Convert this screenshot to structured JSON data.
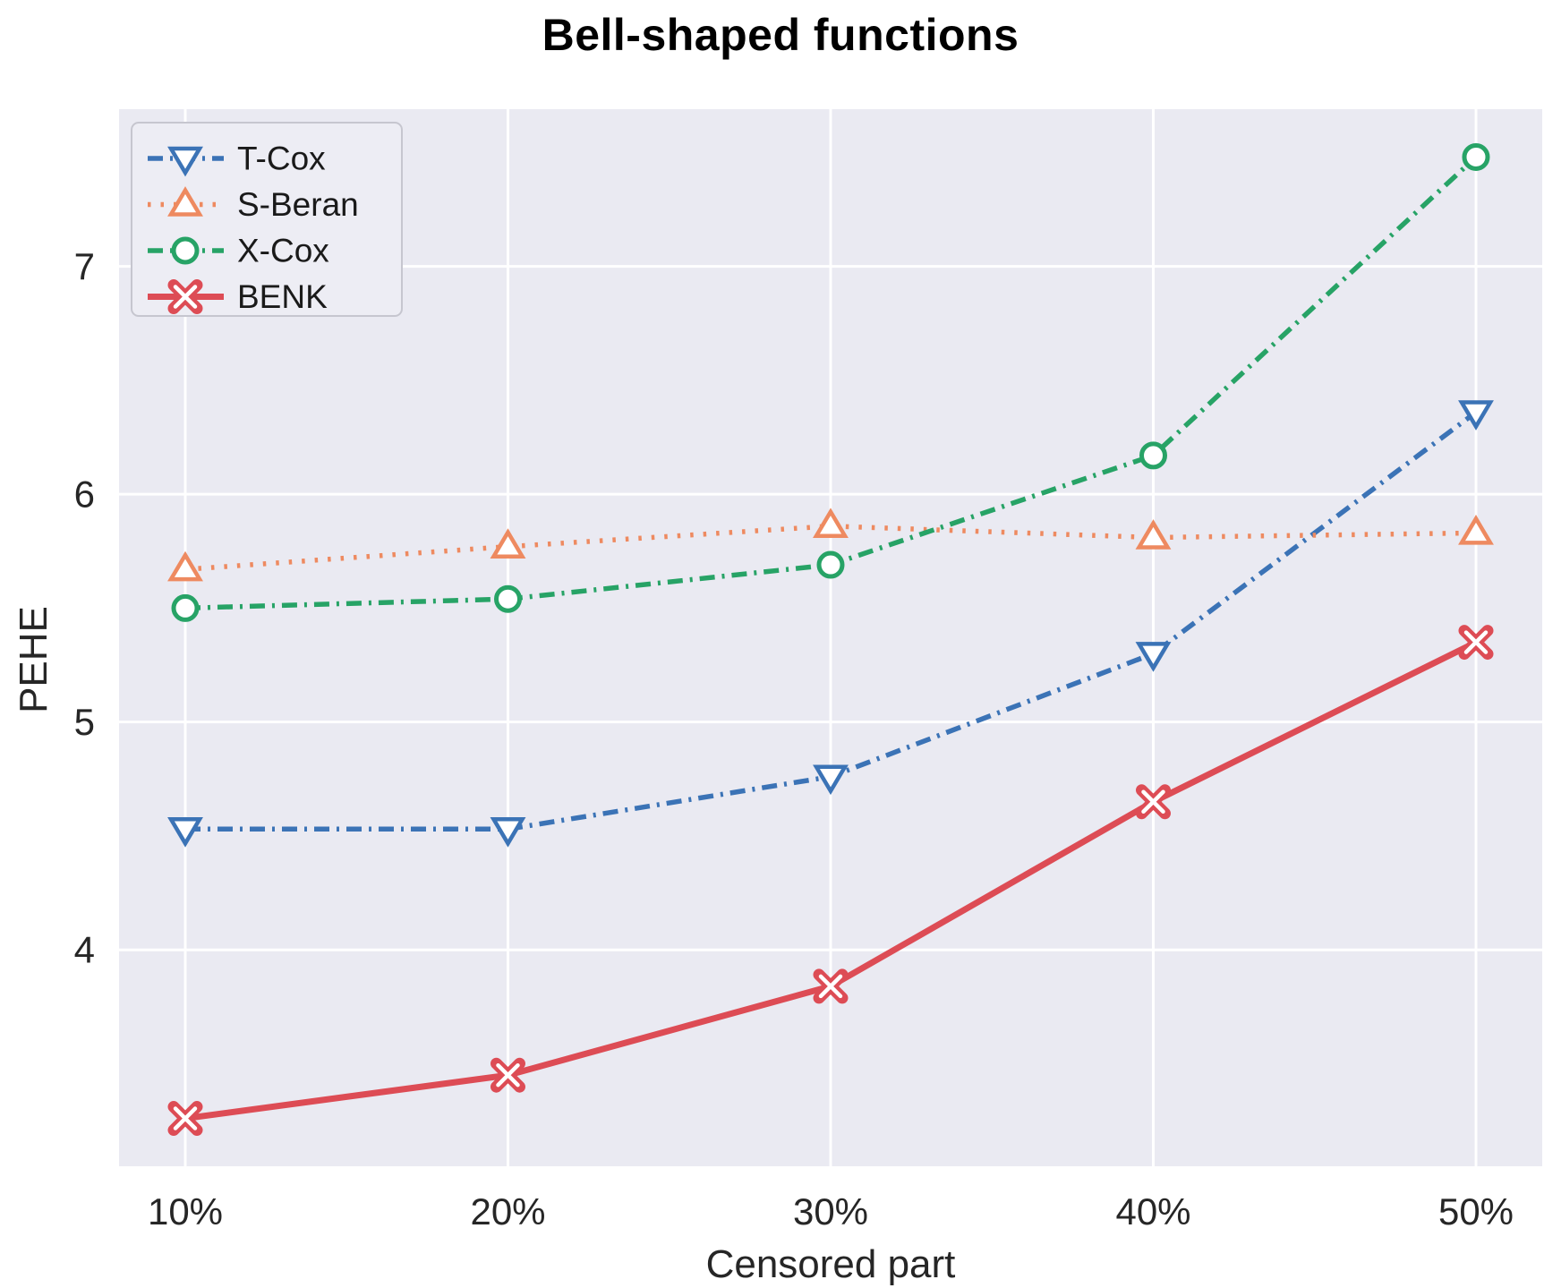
{
  "chart_data": {
    "type": "line",
    "title": "Bell-shaped functions",
    "xlabel": "Censored part",
    "ylabel": "PEHE",
    "categories": [
      "10%",
      "20%",
      "30%",
      "40%",
      "50%"
    ],
    "y_ticks": [
      "4",
      "5",
      "6",
      "7"
    ],
    "y_tick_values": [
      4,
      5,
      6,
      7
    ],
    "ylim": [
      3.05,
      7.69
    ],
    "grid": true,
    "grid_color": "#ffffff",
    "plot_background": "#eaeaf2",
    "text_color": "#262626",
    "legend_position": "upper-left",
    "legend_background": "#ededf4",
    "legend_border": "#c6c6cf",
    "series": [
      {
        "name": "T-Cox",
        "color": "#3b73b6",
        "line_style": "dashdot",
        "marker": "triangle-down",
        "values": [
          4.53,
          4.53,
          4.76,
          5.3,
          6.36
        ]
      },
      {
        "name": "S-Beran",
        "color": "#ee8a60",
        "line_style": "dotted",
        "marker": "triangle-up",
        "values": [
          5.67,
          5.77,
          5.86,
          5.81,
          5.83
        ]
      },
      {
        "name": "X-Cox",
        "color": "#27a366",
        "line_style": "dashdot",
        "marker": "circle",
        "values": [
          5.5,
          5.54,
          5.69,
          6.17,
          7.48
        ]
      },
      {
        "name": "BENK",
        "color": "#dd4c55",
        "line_style": "solid",
        "marker": "x-filled",
        "values": [
          3.26,
          3.45,
          3.84,
          4.65,
          5.35
        ]
      }
    ]
  }
}
